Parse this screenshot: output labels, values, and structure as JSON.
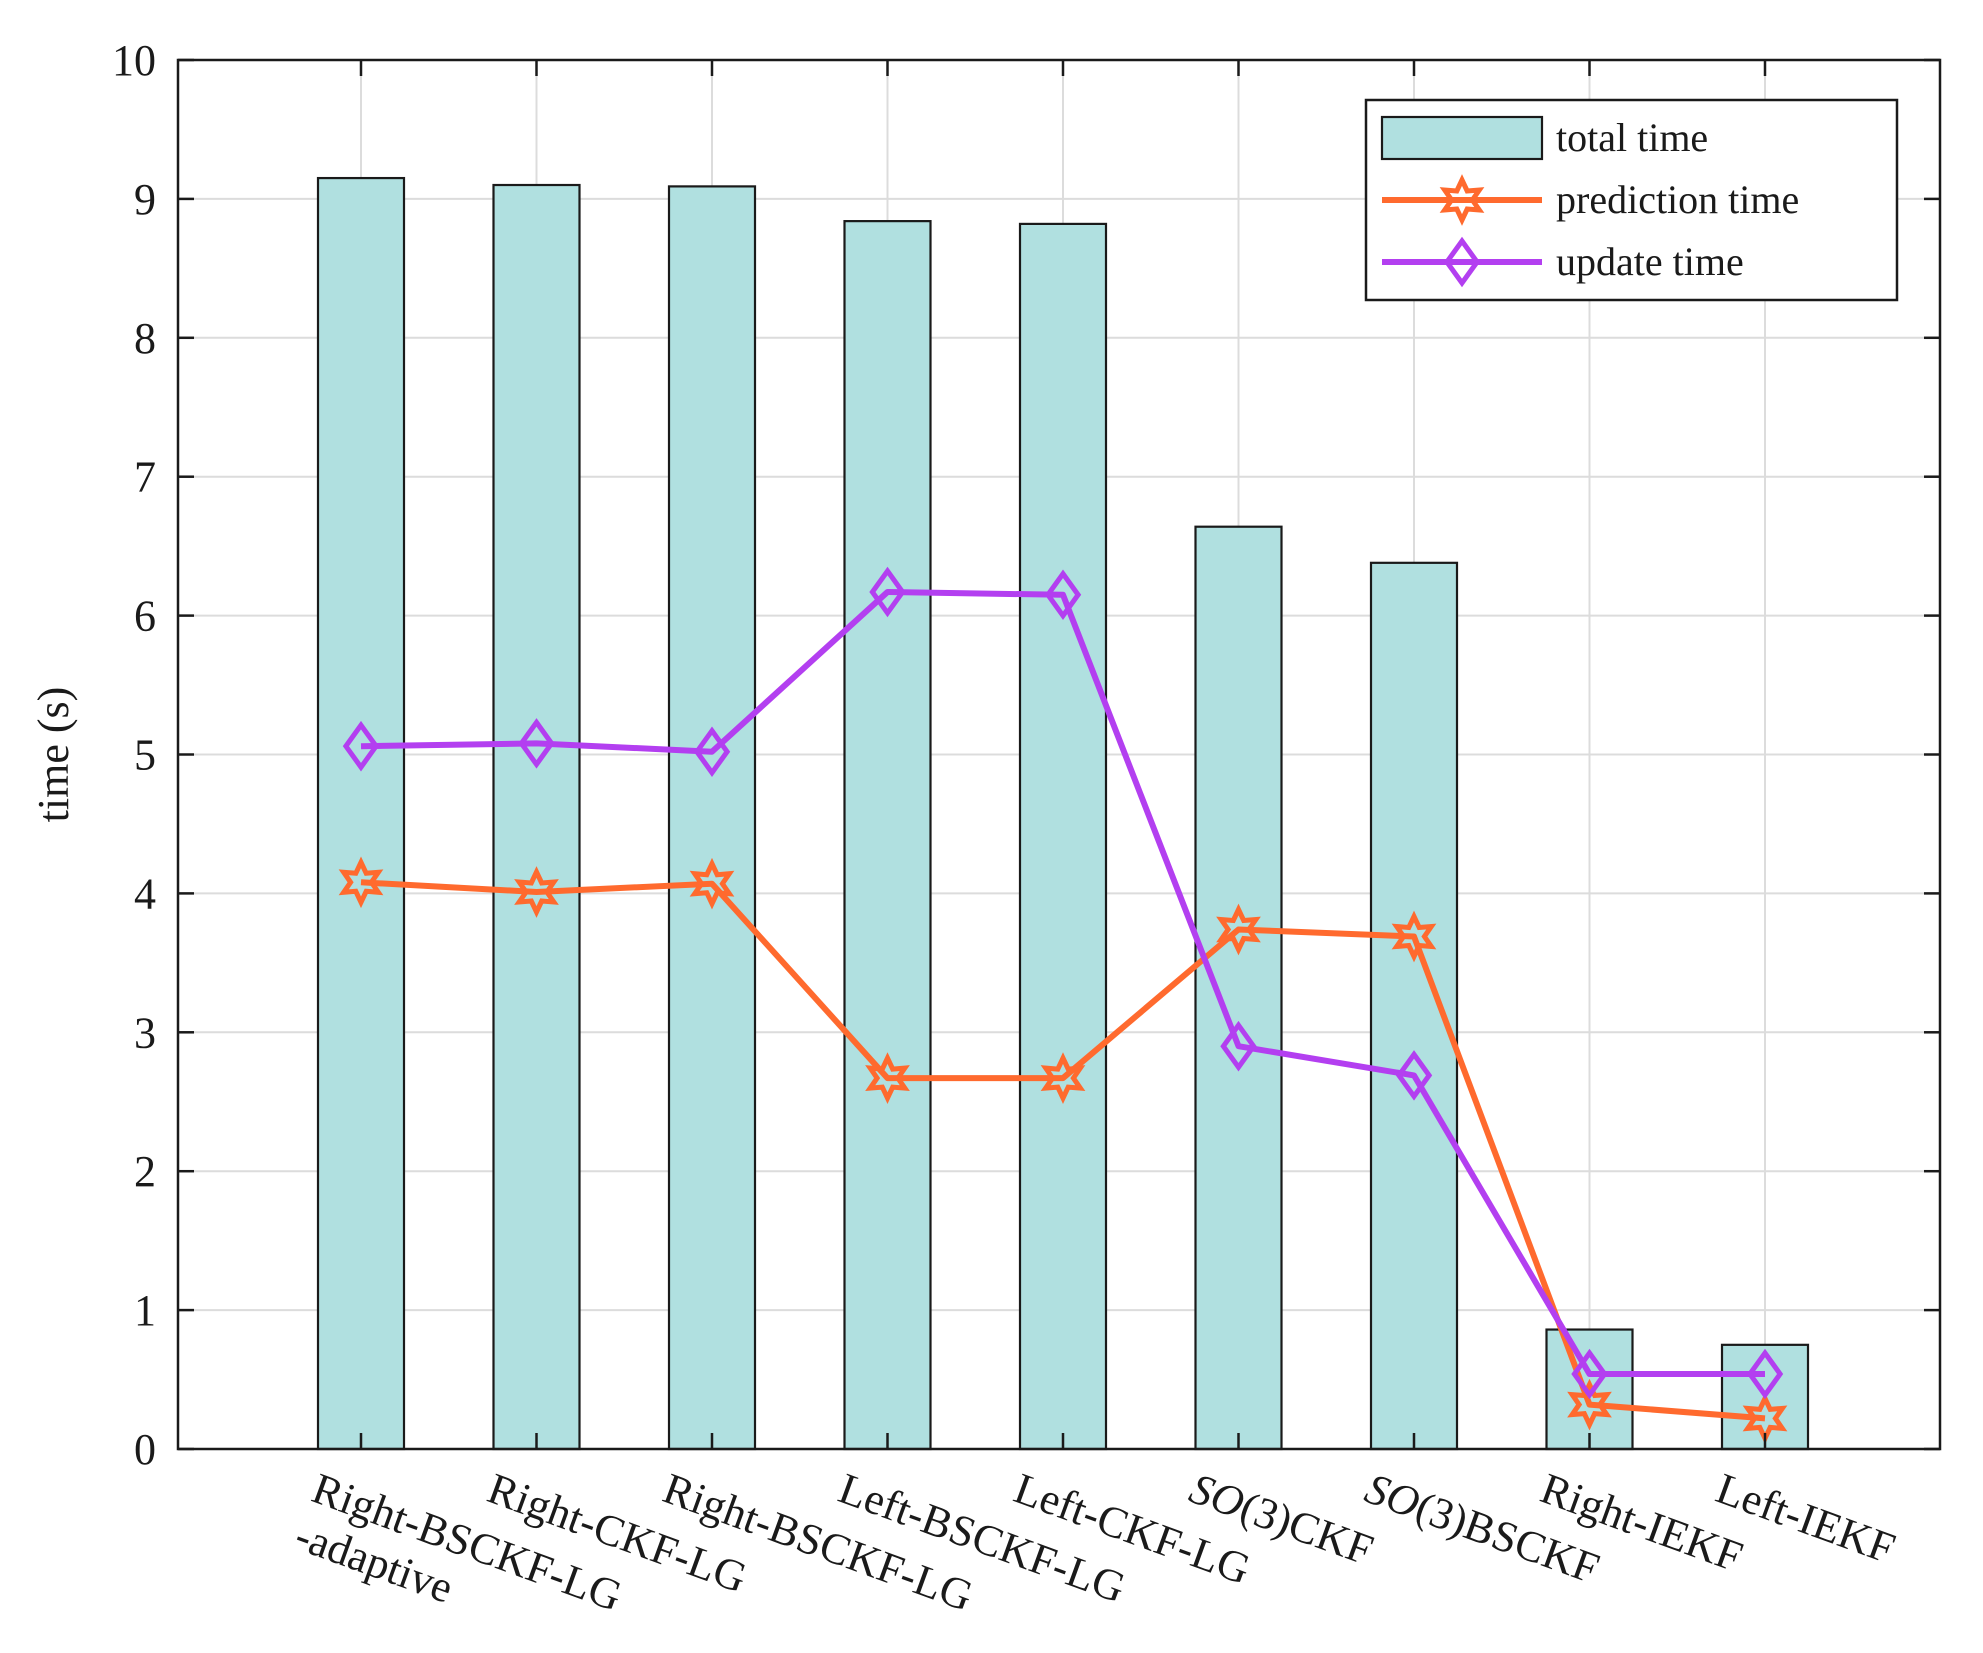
{
  "chart_data": {
    "type": "bar",
    "categories": [
      [
        "Right-BSCKF-LG",
        "-adaptive"
      ],
      [
        "Right-CKF-LG"
      ],
      [
        "Right-BSCKF-LG"
      ],
      [
        "Left-BSCKF-LG"
      ],
      [
        "Left-CKF-LG"
      ],
      [
        "SO(3)CKF"
      ],
      [
        "SO(3)BSCKF"
      ],
      [
        "Right-IEKF"
      ],
      [
        "Left-IEKF"
      ]
    ],
    "italic_prefix": "SO",
    "ylabel": "time (s)",
    "ylim": [
      0,
      10
    ],
    "yticks": [
      0,
      1,
      2,
      3,
      4,
      5,
      6,
      7,
      8,
      9,
      10
    ],
    "grid": true,
    "legend_position": "top-right",
    "series": [
      {
        "name": "total time",
        "kind": "bar",
        "color": "#b0e0e0",
        "values": [
          9.15,
          9.1,
          9.09,
          8.84,
          8.82,
          6.64,
          6.38,
          0.86,
          0.75
        ]
      },
      {
        "name": "prediction time",
        "kind": "line",
        "marker": "hexagram",
        "color": "#ff6a2e",
        "values": [
          4.08,
          4.01,
          4.07,
          2.67,
          2.67,
          3.74,
          3.69,
          0.32,
          0.22
        ]
      },
      {
        "name": "update time",
        "kind": "line",
        "marker": "diamond",
        "color": "#b33ff0",
        "values": [
          5.06,
          5.08,
          5.02,
          6.17,
          6.15,
          2.9,
          2.69,
          0.54,
          0.54
        ]
      }
    ]
  }
}
